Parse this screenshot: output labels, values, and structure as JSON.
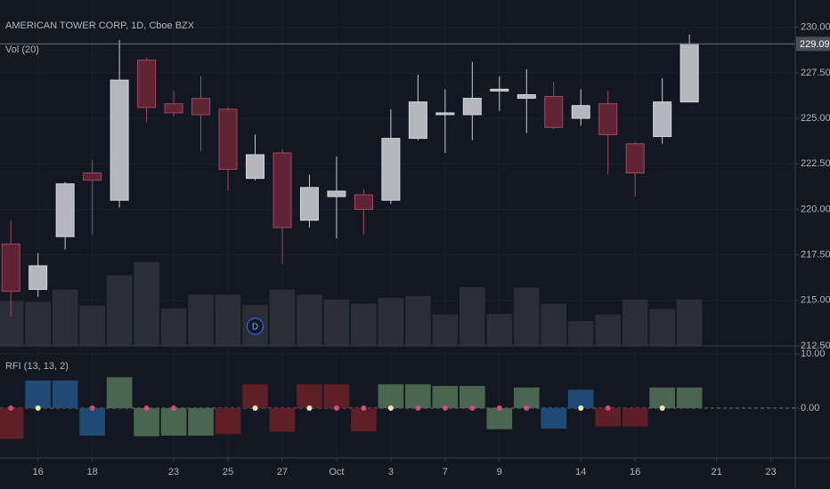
{
  "chart_data": {
    "type": "candlestick",
    "title": "AMERICAN TOWER CORP, 1D, Cboe BZX",
    "volume_label": "Vol (20)",
    "xlim": [
      -0.4,
      28.9
    ],
    "xticks": [
      {
        "value": 1,
        "label": "16"
      },
      {
        "value": 3,
        "label": "18"
      },
      {
        "value": 6,
        "label": "23"
      },
      {
        "value": 8,
        "label": "25"
      },
      {
        "value": 10,
        "label": "27"
      },
      {
        "value": 12,
        "label": "Oct"
      },
      {
        "value": 14,
        "label": "3"
      },
      {
        "value": 16,
        "label": "7"
      },
      {
        "value": 18,
        "label": "9"
      },
      {
        "value": 21,
        "label": "14"
      },
      {
        "value": 23,
        "label": "16"
      },
      {
        "value": 26,
        "label": "21"
      },
      {
        "value": 28,
        "label": "23"
      }
    ],
    "ylim": [
      212.5,
      231.5
    ],
    "yticks": [
      {
        "value": 212.5,
        "label": "212.50"
      },
      {
        "value": 215,
        "label": "215.00"
      },
      {
        "value": 217.5,
        "label": "217.50"
      },
      {
        "value": 220,
        "label": "220.00"
      },
      {
        "value": 222.5,
        "label": "222.50"
      },
      {
        "value": 225,
        "label": "225.00"
      },
      {
        "value": 227.5,
        "label": "227.50"
      },
      {
        "value": 230,
        "label": "230.00"
      }
    ],
    "open": [
      218.1,
      215.6,
      218.5,
      222.0,
      220.5,
      228.2,
      225.8,
      226.1,
      225.5,
      221.7,
      223.1,
      219.4,
      220.7,
      220.8,
      220.5,
      223.9,
      225.2,
      225.2,
      226.5,
      226.1,
      226.2,
      225.0,
      225.8,
      223.6,
      224.0,
      225.9
    ],
    "high": [
      219.4,
      217.6,
      221.5,
      222.7,
      229.3,
      228.3,
      226.5,
      227.3,
      225.6,
      224.1,
      223.3,
      221.9,
      222.9,
      221.1,
      225.5,
      227.4,
      226.6,
      228.1,
      227.3,
      227.7,
      227.0,
      226.6,
      226.5,
      223.7,
      227.2,
      229.6
    ],
    "low": [
      214.1,
      215.2,
      217.8,
      218.6,
      220.1,
      224.8,
      225.1,
      223.2,
      221.0,
      221.6,
      217.0,
      219.0,
      218.4,
      218.6,
      220.3,
      223.8,
      223.1,
      223.8,
      225.4,
      224.2,
      224.4,
      224.6,
      221.9,
      220.7,
      223.6,
      225.9
    ],
    "close": [
      215.5,
      216.9,
      221.4,
      221.6,
      227.1,
      225.6,
      225.3,
      225.2,
      222.2,
      223.0,
      219.0,
      221.2,
      221.0,
      220.0,
      223.9,
      225.9,
      225.3,
      226.1,
      226.6,
      226.3,
      224.5,
      225.7,
      224.1,
      222.0,
      225.9,
      229.09
    ],
    "up_color": "#b5b7bd",
    "down_color": "#5e2434",
    "volume": {
      "values": [
        1.25,
        1.23,
        1.58,
        1.13,
        1.98,
        2.35,
        1.05,
        1.43,
        1.43,
        1.15,
        1.58,
        1.43,
        1.3,
        1.18,
        1.35,
        1.4,
        0.88,
        1.65,
        0.9,
        1.63,
        1.18,
        0.7,
        0.88,
        1.3,
        1.03,
        1.3
      ],
      "color": "#2b2e36",
      "ylim": [
        0,
        9.7
      ]
    },
    "dividend": {
      "x": 9,
      "label": "D"
    },
    "rfi": {
      "title": "RFI (13, 13, 2)",
      "ylim": [
        -9.2,
        11.5
      ],
      "yticks": [
        {
          "value": 0,
          "label": "0.00"
        },
        {
          "value": 10,
          "label": "10.00"
        }
      ],
      "values": [
        -5.7,
        5.1,
        5.1,
        -5.1,
        5.7,
        -5.2,
        -5.1,
        -5.1,
        -4.8,
        4.4,
        -4.4,
        4.4,
        4.4,
        -4.3,
        4.4,
        4.4,
        4.1,
        4.1,
        -3.9,
        3.8,
        -3.8,
        3.4,
        -3.4,
        -3.4,
        3.8,
        3.8
      ],
      "colors": [
        "#5e1f27",
        "#1f4a75",
        "#1f4a75",
        "#1f4a75",
        "#4a6650",
        "#4a6650",
        "#4a6650",
        "#4a6650",
        "#5e1f27",
        "#5e1f27",
        "#5e1f27",
        "#5e1f27",
        "#5e1f27",
        "#5e1f27",
        "#4a6650",
        "#4a6650",
        "#4a6650",
        "#4a6650",
        "#4a6650",
        "#4a6650",
        "#1f4a75",
        "#1f4a75",
        "#5e1f27",
        "#5e1f27",
        "#4a6650",
        "#4a6650"
      ],
      "dots": {
        "values": [
          0,
          0,
          null,
          0,
          null,
          0,
          0,
          null,
          null,
          0,
          null,
          0,
          0,
          0,
          0,
          0,
          0,
          0,
          0,
          0,
          null,
          0,
          0,
          null,
          0,
          null
        ],
        "colors": [
          "#d0506a",
          "#f2e6b8",
          null,
          "#d0506a",
          null,
          "#d0506a",
          "#d0506a",
          null,
          null,
          "#f2e6b8",
          null,
          "#f2e6b8",
          "#d0506a",
          "#d0506a",
          "#f2e6b8",
          "#d0506a",
          "#d0506a",
          "#d0506a",
          "#d0506a",
          "#d0506a",
          null,
          "#f2e6b8",
          "#d0506a",
          null,
          "#f2e6b8",
          null
        ]
      }
    }
  }
}
